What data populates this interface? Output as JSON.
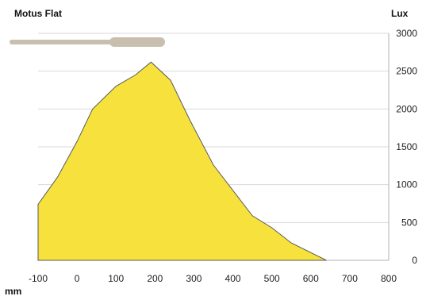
{
  "chart_data": {
    "type": "area",
    "title": "Motus Flat",
    "xlabel": "mm",
    "ylabel": "Lux",
    "xlim": [
      -100,
      800
    ],
    "ylim": [
      0,
      3000
    ],
    "x_ticks": [
      "-100",
      "0",
      "100",
      "200",
      "300",
      "400",
      "500",
      "600",
      "700",
      "800"
    ],
    "y_ticks": [
      "3000",
      "2500",
      "2000",
      "1500",
      "1000",
      "500",
      "0"
    ],
    "grid": true,
    "fill_color": "#f7e23d",
    "line_color": "#5a5a5a",
    "fixture_color": "#c8bfae",
    "series": [
      {
        "x": [
          -100,
          -50,
          0,
          40,
          100,
          150,
          190,
          240,
          290,
          350,
          450,
          500,
          550,
          640
        ],
        "y": [
          740,
          1100,
          1570,
          2000,
          2300,
          2450,
          2620,
          2380,
          1850,
          1260,
          590,
          430,
          230,
          0
        ]
      }
    ]
  }
}
